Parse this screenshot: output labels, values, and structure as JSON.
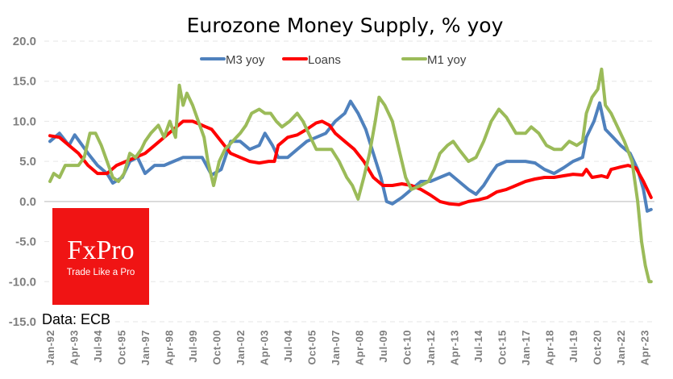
{
  "chart_data": {
    "type": "line",
    "title": "Eurozone Money Supply, % yoy",
    "source": "Data: ECB",
    "logo": {
      "brand": "FxPro",
      "tagline": "Trade Like a Pro"
    },
    "ylim": [
      -15,
      20
    ],
    "yticks": [
      "20.0",
      "15.0",
      "10.0",
      "5.0",
      "0.0",
      "-5.0",
      "-10.0",
      "-15.0"
    ],
    "ytick_values": [
      20,
      15,
      10,
      5,
      0,
      -5,
      -10,
      -15
    ],
    "xlim": [
      1992.0,
      2023.6
    ],
    "xtick_labels": [
      "Jan-92",
      "Apr-93",
      "Jul-94",
      "Oct-95",
      "Jan-97",
      "Apr-98",
      "Jul-99",
      "Oct-00",
      "Jan-02",
      "Apr-03",
      "Jul-04",
      "Oct-05",
      "Jan-07",
      "Apr-08",
      "Jul-09",
      "Oct-10",
      "Jan-12",
      "Apr-13",
      "Jul-14",
      "Oct-15",
      "Jan-17",
      "Apr-18",
      "Jul-19",
      "Oct-20",
      "Jan-22",
      "Apr-23"
    ],
    "grid": true,
    "legend_position": "top-center",
    "series": [
      {
        "name": "M3 yoy",
        "color": "#4f81bd",
        "x": [
          1992.0,
          1992.5,
          1993.0,
          1993.3,
          1993.7,
          1994.0,
          1994.5,
          1995.0,
          1995.3,
          1995.8,
          1996.2,
          1996.6,
          1997.0,
          1997.5,
          1998.0,
          1998.5,
          1999.0,
          1999.5,
          2000.0,
          2000.5,
          2001.0,
          2001.5,
          2002.0,
          2002.5,
          2003.0,
          2003.3,
          2003.7,
          2004.0,
          2004.5,
          2005.0,
          2005.5,
          2006.0,
          2006.5,
          2007.0,
          2007.5,
          2007.8,
          2008.2,
          2008.6,
          2009.0,
          2009.4,
          2009.7,
          2010.0,
          2010.5,
          2011.0,
          2011.5,
          2012.0,
          2012.5,
          2013.0,
          2013.5,
          2014.0,
          2014.4,
          2014.8,
          2015.2,
          2015.5,
          2016.0,
          2017.0,
          2017.5,
          2018.0,
          2018.5,
          2019.0,
          2019.5,
          2020.0,
          2020.2,
          2020.6,
          2020.9,
          2021.2,
          2021.6,
          2022.0,
          2022.5,
          2022.9,
          2023.2,
          2023.4,
          2023.6
        ],
        "y": [
          7.5,
          8.5,
          7.0,
          8.3,
          7.0,
          6.0,
          4.5,
          3.5,
          2.3,
          3.0,
          5.0,
          5.5,
          3.5,
          4.5,
          4.5,
          5.0,
          5.5,
          5.5,
          5.5,
          3.3,
          4.0,
          7.5,
          7.5,
          6.5,
          7.0,
          8.5,
          7.0,
          5.5,
          5.5,
          6.5,
          7.5,
          8.0,
          8.5,
          10.0,
          11.0,
          12.5,
          11.0,
          9.0,
          6.0,
          3.0,
          0.0,
          -0.3,
          0.5,
          1.5,
          2.5,
          2.5,
          3.0,
          3.5,
          2.5,
          1.5,
          0.9,
          2.0,
          3.5,
          4.5,
          5.0,
          5.0,
          4.8,
          4.0,
          3.5,
          4.2,
          5.0,
          5.5,
          8.0,
          10.0,
          12.3,
          9.0,
          8.0,
          7.0,
          6.0,
          4.0,
          1.5,
          -1.2,
          -1.0
        ]
      },
      {
        "name": "Loans",
        "color": "#ff0000",
        "x": [
          1992.0,
          1992.5,
          1993.0,
          1993.5,
          1994.0,
          1994.5,
          1995.0,
          1995.5,
          1996.0,
          1996.5,
          1997.0,
          1997.5,
          1998.0,
          1998.5,
          1999.0,
          1999.5,
          2000.0,
          2000.5,
          2001.0,
          2001.5,
          2002.0,
          2002.5,
          2003.0,
          2003.5,
          2003.8,
          2004.0,
          2004.5,
          2005.0,
          2005.5,
          2006.0,
          2006.3,
          2006.7,
          2007.0,
          2007.5,
          2008.0,
          2008.5,
          2009.0,
          2009.5,
          2010.0,
          2010.5,
          2011.0,
          2011.5,
          2012.0,
          2012.5,
          2013.0,
          2013.5,
          2014.0,
          2014.5,
          2015.0,
          2015.5,
          2016.0,
          2016.5,
          2017.0,
          2017.5,
          2018.0,
          2018.5,
          2019.0,
          2019.5,
          2020.0,
          2020.2,
          2020.5,
          2021.0,
          2021.3,
          2021.5,
          2022.0,
          2022.4,
          2022.8,
          2023.2,
          2023.6
        ],
        "y": [
          8.2,
          8.0,
          7.0,
          6.0,
          4.5,
          3.5,
          3.5,
          4.5,
          5.0,
          5.5,
          6.0,
          7.0,
          8.0,
          9.0,
          10.0,
          10.0,
          9.5,
          9.0,
          7.5,
          6.0,
          5.5,
          5.0,
          4.8,
          5.0,
          5.0,
          7.0,
          8.0,
          8.3,
          9.0,
          9.8,
          10.0,
          9.5,
          8.5,
          7.5,
          6.5,
          5.0,
          3.0,
          2.0,
          2.0,
          2.2,
          2.0,
          1.5,
          0.8,
          0.0,
          -0.3,
          -0.4,
          0.0,
          0.2,
          0.5,
          1.2,
          1.5,
          2.0,
          2.5,
          2.8,
          3.0,
          3.0,
          3.2,
          3.4,
          3.3,
          4.0,
          3.0,
          3.2,
          3.0,
          4.0,
          4.3,
          4.5,
          4.2,
          2.5,
          0.5
        ]
      },
      {
        "name": "M1 yoy",
        "color": "#9bbb59",
        "x": [
          1992.0,
          1992.2,
          1992.5,
          1992.8,
          1993.2,
          1993.5,
          1993.8,
          1994.1,
          1994.4,
          1994.7,
          1995.0,
          1995.3,
          1995.6,
          1995.9,
          1996.2,
          1996.5,
          1996.8,
          1997.0,
          1997.3,
          1997.7,
          1998.0,
          1998.3,
          1998.6,
          1998.8,
          1999.0,
          1999.2,
          1999.5,
          1999.8,
          2000.1,
          2000.3,
          2000.6,
          2000.9,
          2001.2,
          2001.6,
          2002.0,
          2002.3,
          2002.6,
          2003.0,
          2003.3,
          2003.6,
          2003.9,
          2004.2,
          2004.6,
          2005.0,
          2005.3,
          2005.7,
          2006.0,
          2006.4,
          2006.8,
          2007.2,
          2007.6,
          2007.9,
          2008.2,
          2008.5,
          2008.8,
          2009.1,
          2009.3,
          2009.6,
          2010.0,
          2010.4,
          2010.7,
          2011.0,
          2011.5,
          2011.9,
          2012.2,
          2012.5,
          2012.9,
          2013.2,
          2013.5,
          2014.0,
          2014.4,
          2014.8,
          2015.2,
          2015.6,
          2016.0,
          2016.5,
          2017.0,
          2017.3,
          2017.7,
          2018.1,
          2018.5,
          2018.9,
          2019.3,
          2019.7,
          2020.0,
          2020.2,
          2020.5,
          2020.8,
          2021.0,
          2021.2,
          2021.5,
          2021.9,
          2022.2,
          2022.6,
          2022.9,
          2023.1,
          2023.3,
          2023.5,
          2023.6
        ],
        "y": [
          2.5,
          3.5,
          3.0,
          4.5,
          4.5,
          4.5,
          5.5,
          8.5,
          8.5,
          7.0,
          5.0,
          3.0,
          2.5,
          3.5,
          6.0,
          5.5,
          6.5,
          7.5,
          8.5,
          9.5,
          8.0,
          10.0,
          8.0,
          14.5,
          12.0,
          13.5,
          12.0,
          10.0,
          8.0,
          5.0,
          2.0,
          5.0,
          6.5,
          7.5,
          8.5,
          9.5,
          11.0,
          11.5,
          11.0,
          11.0,
          10.0,
          9.3,
          10.0,
          11.0,
          10.0,
          8.0,
          6.5,
          6.5,
          6.5,
          5.0,
          3.0,
          2.0,
          0.3,
          3.0,
          6.0,
          10.0,
          13.0,
          12.0,
          10.0,
          6.0,
          3.0,
          1.5,
          2.0,
          2.5,
          4.0,
          6.0,
          7.0,
          7.5,
          6.5,
          5.0,
          5.5,
          7.5,
          10.0,
          11.5,
          10.5,
          8.5,
          8.5,
          9.3,
          8.5,
          7.0,
          6.5,
          6.5,
          7.5,
          7.0,
          7.5,
          11.0,
          13.0,
          14.0,
          16.5,
          12.0,
          11.0,
          9.0,
          7.5,
          5.0,
          0.0,
          -5.0,
          -8.0,
          -10.0,
          -10.0
        ]
      }
    ]
  }
}
